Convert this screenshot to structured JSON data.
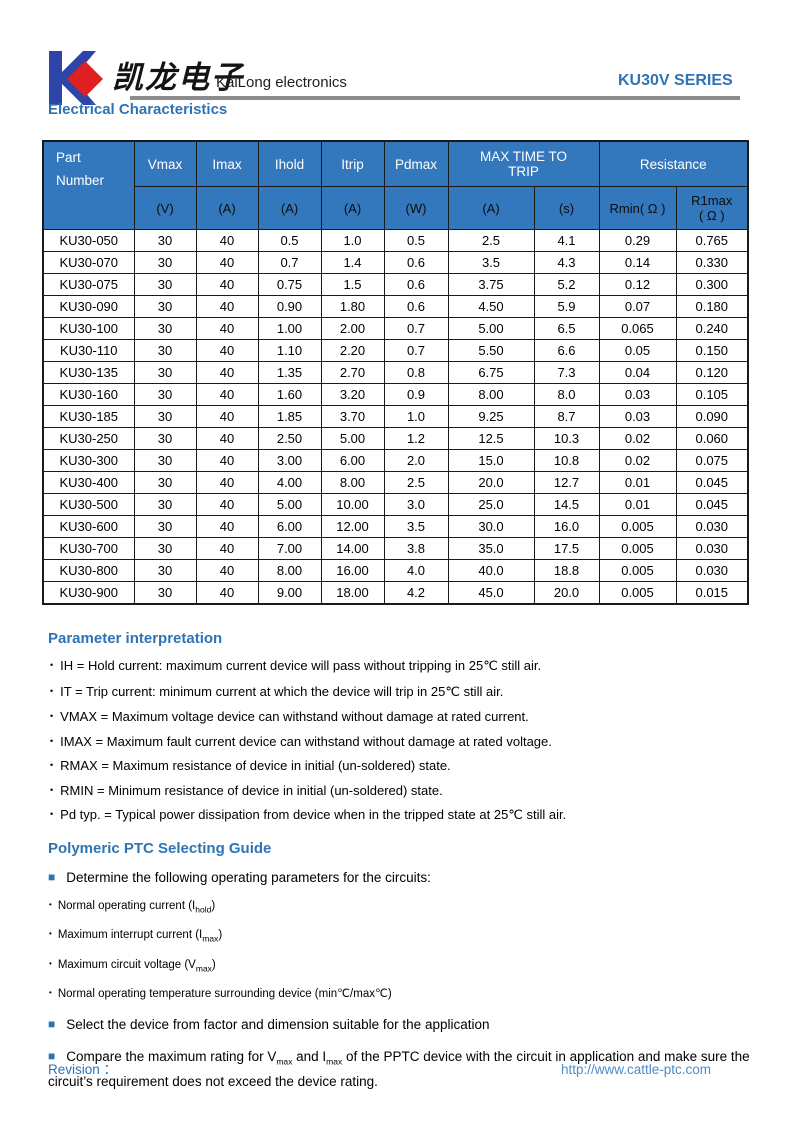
{
  "icons": {
    "dot": "•",
    "square": "■"
  },
  "colors": {
    "accent_blue": "#2E74B5",
    "table_header_blue": "#3377BD",
    "logo_blue": "#2F44A8",
    "logo_red": "#E02020",
    "rule_gray": "#8C8C8C",
    "link_blue": "#4E8BC8"
  },
  "header": {
    "logo_chinese": "凯龙电子",
    "company": "KaiLong electronics",
    "series": "KU30V SERIES"
  },
  "electrical": {
    "title": "Electrical Characteristics"
  },
  "table": {
    "headers": {
      "part": "Part\nNumber",
      "vmax": "Vmax",
      "imax": "Imax",
      "ihold": "Ihold",
      "itrip": "Itrip",
      "pdmax": "Pdmax",
      "max_time": "MAX TIME TO\nTRIP",
      "resistance": "Resistance",
      "units": {
        "v": "(V)",
        "a1": "(A)",
        "a2": "(A)",
        "a3": "(A)",
        "w": "(W)",
        "a4": "(A)",
        "s": "(s)",
        "rmin": "Rmin( Ω )",
        "r1max": "R1max\n( Ω )"
      }
    },
    "rows": [
      [
        "KU30-050",
        "30",
        "40",
        "0.5",
        "1.0",
        "0.5",
        "2.5",
        "4.1",
        "0.29",
        "0.765"
      ],
      [
        "KU30-070",
        "30",
        "40",
        "0.7",
        "1.4",
        "0.6",
        "3.5",
        "4.3",
        "0.14",
        "0.330"
      ],
      [
        "KU30-075",
        "30",
        "40",
        "0.75",
        "1.5",
        "0.6",
        "3.75",
        "5.2",
        "0.12",
        "0.300"
      ],
      [
        "KU30-090",
        "30",
        "40",
        "0.90",
        "1.80",
        "0.6",
        "4.50",
        "5.9",
        "0.07",
        "0.180"
      ],
      [
        "KU30-100",
        "30",
        "40",
        "1.00",
        "2.00",
        "0.7",
        "5.00",
        "6.5",
        "0.065",
        "0.240"
      ],
      [
        "KU30-110",
        "30",
        "40",
        "1.10",
        "2.20",
        "0.7",
        "5.50",
        "6.6",
        "0.05",
        "0.150"
      ],
      [
        "KU30-135",
        "30",
        "40",
        "1.35",
        "2.70",
        "0.8",
        "6.75",
        "7.3",
        "0.04",
        "0.120"
      ],
      [
        "KU30-160",
        "30",
        "40",
        "1.60",
        "3.20",
        "0.9",
        "8.00",
        "8.0",
        "0.03",
        "0.105"
      ],
      [
        "KU30-185",
        "30",
        "40",
        "1.85",
        "3.70",
        "1.0",
        "9.25",
        "8.7",
        "0.03",
        "0.090"
      ],
      [
        "KU30-250",
        "30",
        "40",
        "2.50",
        "5.00",
        "1.2",
        "12.5",
        "10.3",
        "0.02",
        "0.060"
      ],
      [
        "KU30-300",
        "30",
        "40",
        "3.00",
        "6.00",
        "2.0",
        "15.0",
        "10.8",
        "0.02",
        "0.075"
      ],
      [
        "KU30-400",
        "30",
        "40",
        "4.00",
        "8.00",
        "2.5",
        "20.0",
        "12.7",
        "0.01",
        "0.045"
      ],
      [
        "KU30-500",
        "30",
        "40",
        "5.00",
        "10.00",
        "3.0",
        "25.0",
        "14.5",
        "0.01",
        "0.045"
      ],
      [
        "KU30-600",
        "30",
        "40",
        "6.00",
        "12.00",
        "3.5",
        "30.0",
        "16.0",
        "0.005",
        "0.030"
      ],
      [
        "KU30-700",
        "30",
        "40",
        "7.00",
        "14.00",
        "3.8",
        "35.0",
        "17.5",
        "0.005",
        "0.030"
      ],
      [
        "KU30-800",
        "30",
        "40",
        "8.00",
        "16.00",
        "4.0",
        "40.0",
        "18.8",
        "0.005",
        "0.030"
      ],
      [
        "KU30-900",
        "30",
        "40",
        "9.00",
        "18.00",
        "4.2",
        "45.0",
        "20.0",
        "0.005",
        "0.015"
      ]
    ]
  },
  "parameter_interpretation": {
    "title": "Parameter interpretation",
    "items": [
      "IH = Hold current: maximum current device will pass without tripping in 25℃  still air.",
      "IT = Trip current: minimum current at which the device will trip in 25℃  still air.",
      "VMAX = Maximum voltage device can withstand without damage at rated current.",
      "IMAX = Maximum fault current device can withstand without damage at rated voltage.",
      "RMAX = Maximum resistance of device in initial (un-soldered) state.",
      "RMIN = Minimum resistance of device in initial (un-soldered) state.",
      "Pd typ. = Typical power dissipation from device when in the tripped state at 25℃  still air."
    ]
  },
  "selecting_guide": {
    "title": "Polymeric PTC Selecting Guide",
    "items": [
      {
        "bullet": "square",
        "size": "normal",
        "segments": [
          "Determine the following operating parameters for the circuits:"
        ]
      },
      {
        "bullet": "dot",
        "size": "small",
        "segments": [
          "Normal operating current (I",
          {
            "sub": "hold"
          },
          ")"
        ]
      },
      {
        "bullet": "dot",
        "size": "small",
        "segments": [
          "Maximum interrupt current (I",
          {
            "sub": "max"
          },
          ")"
        ]
      },
      {
        "bullet": "dot",
        "size": "small",
        "segments": [
          "Maximum circuit voltage (V",
          {
            "sub": "max"
          },
          ")"
        ]
      },
      {
        "bullet": "dot",
        "size": "small",
        "segments": [
          "Normal operating temperature surrounding device (min℃/max℃)"
        ]
      },
      {
        "bullet": "square",
        "size": "normal",
        "segments": [
          "Select the device from factor and dimension suitable for the application"
        ]
      },
      {
        "bullet": "square",
        "size": "normal",
        "wrap": true,
        "segments": [
          "Compare the maximum rating for V",
          {
            "sub": "max"
          },
          " and I",
          {
            "sub": "max"
          },
          " of the PPTC device with the circuit in application and make sure the circuit’s requirement does not exceed the device rating."
        ]
      }
    ]
  },
  "footer": {
    "revision_label": "Revision ：",
    "url": "http://www.cattle-ptc.com"
  }
}
